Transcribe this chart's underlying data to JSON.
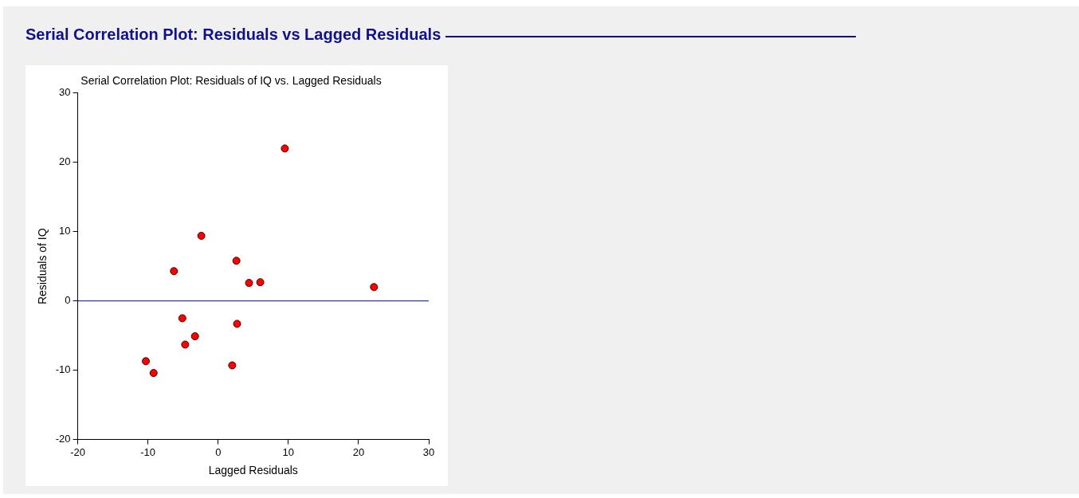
{
  "chart_data": {
    "type": "scatter",
    "title": "Serial Correlation Plot: Residuals vs Lagged Residuals",
    "subtitle": "Serial Correlation Plot: Residuals of IQ vs. Lagged Residuals",
    "xlabel": "Lagged Residuals",
    "ylabel": "Residuals of IQ",
    "x": [
      -10.3,
      -9.2,
      -6.3,
      -5.1,
      -4.7,
      -3.3,
      -2.4,
      2.0,
      2.6,
      2.7,
      4.4,
      6.0,
      9.5,
      22.2
    ],
    "series": [
      {
        "color": "#ff0000",
        "values": [
          -8.7,
          -10.4,
          4.3,
          -2.5,
          -6.3,
          -5.1,
          9.4,
          -9.3,
          5.8,
          -3.3,
          2.6,
          2.7,
          22.0,
          2.0
        ]
      }
    ],
    "xlim": [
      -20,
      30
    ],
    "xticks": [
      -20,
      -10,
      0,
      10,
      20,
      30
    ],
    "ylim": [
      -20,
      30
    ],
    "yticks": [
      -20,
      -10,
      0,
      10,
      20,
      30
    ],
    "ref_lines": [
      {
        "axis": "y",
        "value": 0,
        "color": "#0000cc"
      }
    ],
    "grid": false,
    "legend": false,
    "marker": "circle"
  }
}
